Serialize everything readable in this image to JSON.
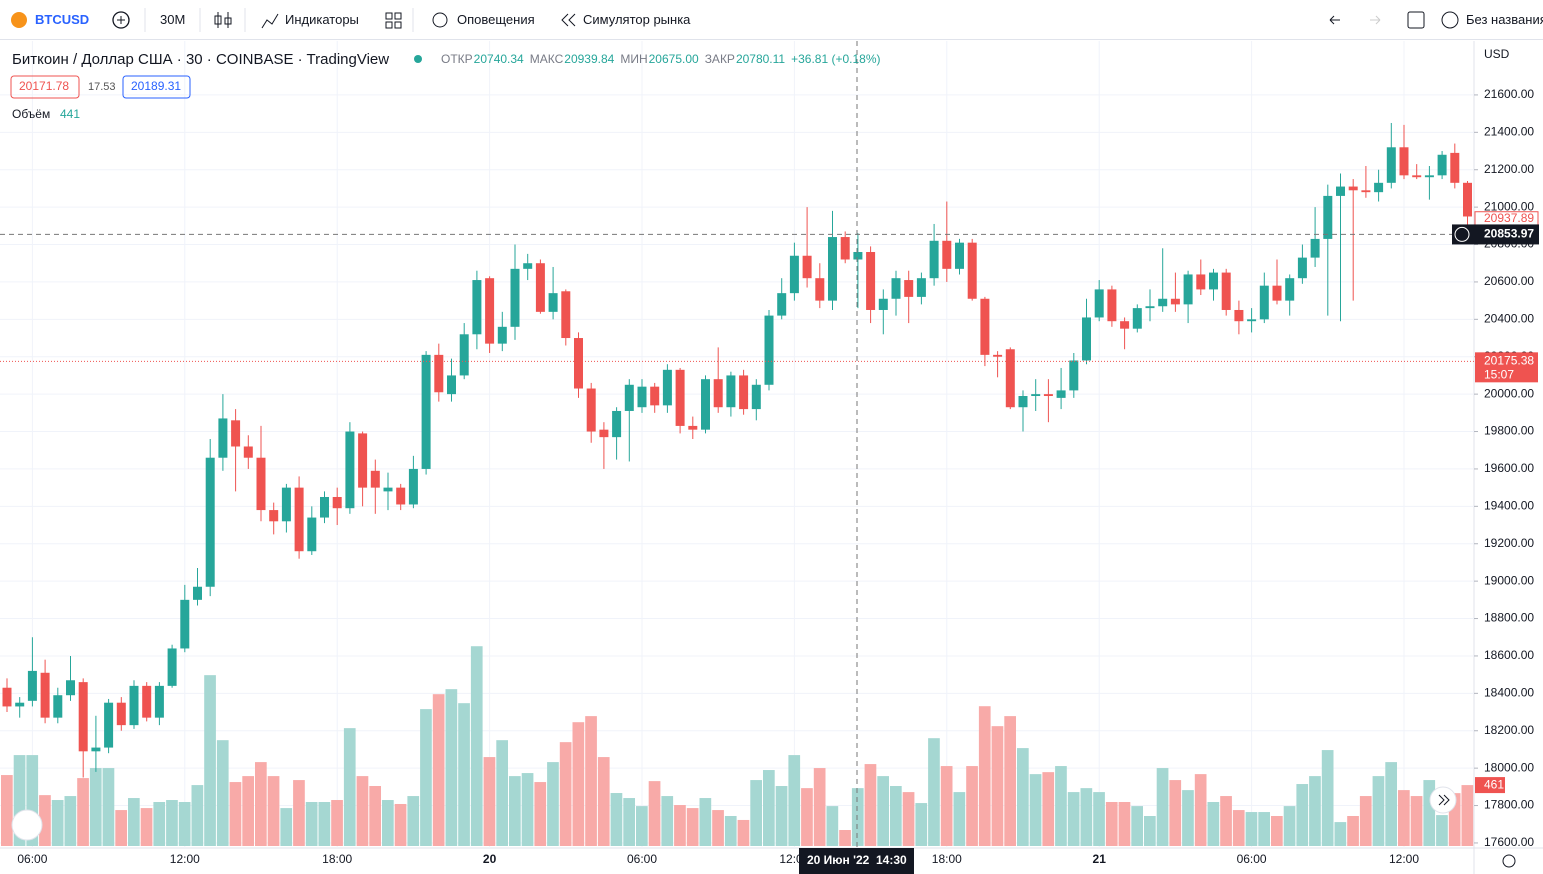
{
  "header": {
    "symbol": "BTCUSD",
    "interval": "30М",
    "indicators": "Индикаторы",
    "alerts": "Оповещения",
    "replay": "Симулятор рынка",
    "layout": "Без названия"
  },
  "chart_data": {
    "type": "candlestick",
    "title": "Биткоин / Доллар США · 30 · COINBASE · TradingView",
    "legend": {
      "open_label": "ОТКР",
      "open": 20740.34,
      "high_label": "МАКС",
      "high": 20939.84,
      "low_label": "МИН",
      "low": {
        "value": 20675,
        "label": "20675.00"
      },
      "close_label": "ЗАКР",
      "close": 20780.11,
      "change": "+36.81 (+0.18%)"
    },
    "bid": 20171.78,
    "spread": 17.53,
    "ask": 20189.31,
    "volume_label": "Объём",
    "volume_last": 441,
    "currency": "USD",
    "up_color": "#26a69a",
    "down_color": "#ef5350",
    "up_volume_color": "#a5d7d2",
    "down_volume_color": "#f8aaa8",
    "ylim": [
      17573,
      21883
    ],
    "yticks": [
      {
        "value": 17600,
        "label": "17600.00"
      },
      {
        "value": 17800,
        "label": "17800.00"
      },
      {
        "value": 18000,
        "label": "18000.00"
      },
      {
        "value": 18200,
        "label": "18200.00"
      },
      {
        "value": 18400,
        "label": "18400.00"
      },
      {
        "value": 18600,
        "label": "18600.00"
      },
      {
        "value": 18800,
        "label": "18800.00"
      },
      {
        "value": 19000,
        "label": "19000.00"
      },
      {
        "value": 19200,
        "label": "19200.00"
      },
      {
        "value": 19400,
        "label": "19400.00"
      },
      {
        "value": 19600,
        "label": "19600.00"
      },
      {
        "value": 19800,
        "label": "19800.00"
      },
      {
        "value": 20000,
        "label": "20000.00"
      },
      {
        "value": 20200,
        "label": "20200.00"
      },
      {
        "value": 20400,
        "label": "20400.00"
      },
      {
        "value": 20600,
        "label": "20600.00"
      },
      {
        "value": 20800,
        "label": "20800.00"
      },
      {
        "value": 21000,
        "label": "21000.00"
      },
      {
        "value": 21200,
        "label": "21200.00"
      },
      {
        "value": 21400,
        "label": "21400.00"
      },
      {
        "value": 21600,
        "label": "21600.00"
      }
    ],
    "xticks": [
      {
        "value": 2,
        "label": "06:00"
      },
      {
        "value": 14,
        "label": "12:00"
      },
      {
        "value": 26,
        "label": "18:00"
      },
      {
        "value": 38,
        "label": "20"
      },
      {
        "value": 50,
        "label": "06:00"
      },
      {
        "value": 62,
        "label": "12:00"
      },
      {
        "value": 74,
        "label": "18:00"
      },
      {
        "value": 86,
        "label": "21"
      },
      {
        "value": 98,
        "label": "06:00"
      },
      {
        "value": 110,
        "label": "12:00"
      }
    ],
    "grid": true,
    "crosshair_price": 20853.97,
    "crosshair_time": [
      "20 Июн '22",
      "14:30"
    ],
    "open_price_tag": 20937.89,
    "last_price": 20175.38,
    "countdown": "15:07",
    "volume_ylim": [
      0,
      6100
    ],
    "volume_tag": 461,
    "candles": [
      [
        18430,
        18480,
        18300,
        18330
      ],
      [
        18330,
        18380,
        18270,
        18350
      ],
      [
        18360,
        18700,
        18330,
        18520
      ],
      [
        18510,
        18580,
        18240,
        18270
      ],
      [
        18270,
        18430,
        18240,
        18390
      ],
      [
        18390,
        18600,
        18360,
        18470
      ],
      [
        18460,
        18480,
        17950,
        18090
      ],
      [
        18090,
        18280,
        17980,
        18110
      ],
      [
        18110,
        18370,
        18080,
        18350
      ],
      [
        18350,
        18380,
        18200,
        18230
      ],
      [
        18230,
        18470,
        18210,
        18440
      ],
      [
        18440,
        18460,
        18250,
        18270
      ],
      [
        18270,
        18460,
        18230,
        18440
      ],
      [
        18440,
        18660,
        18430,
        18640
      ],
      [
        18640,
        18980,
        18620,
        18900
      ],
      [
        18900,
        19070,
        18870,
        18970
      ],
      [
        18970,
        19760,
        18920,
        19660
      ],
      [
        19660,
        20000,
        19590,
        19870
      ],
      [
        19860,
        19920,
        19480,
        19720
      ],
      [
        19720,
        19780,
        19600,
        19660
      ],
      [
        19660,
        19830,
        19320,
        19380
      ],
      [
        19380,
        19420,
        19250,
        19320
      ],
      [
        19320,
        19520,
        19260,
        19500
      ],
      [
        19500,
        19560,
        19120,
        19160
      ],
      [
        19160,
        19400,
        19140,
        19340
      ],
      [
        19340,
        19480,
        19310,
        19450
      ],
      [
        19450,
        19500,
        19300,
        19390
      ],
      [
        19390,
        19850,
        19360,
        19800
      ],
      [
        19790,
        19800,
        19400,
        19500
      ],
      [
        19590,
        19650,
        19360,
        19500
      ],
      [
        19480,
        19580,
        19380,
        19500
      ],
      [
        19500,
        19520,
        19380,
        19410
      ],
      [
        19410,
        19670,
        19390,
        19600
      ],
      [
        19600,
        20230,
        19570,
        20210
      ],
      [
        20210,
        20270,
        19960,
        20010
      ],
      [
        20000,
        20190,
        19960,
        20100
      ],
      [
        20100,
        20380,
        20080,
        20320
      ],
      [
        20320,
        20660,
        20240,
        20610
      ],
      [
        20620,
        20630,
        20220,
        20270
      ],
      [
        20270,
        20440,
        20230,
        20360
      ],
      [
        20360,
        20800,
        20290,
        20670
      ],
      [
        20670,
        20750,
        20610,
        20700
      ],
      [
        20700,
        20720,
        20430,
        20440
      ],
      [
        20440,
        20680,
        20400,
        20540
      ],
      [
        20550,
        20560,
        20260,
        20300
      ],
      [
        20300,
        20330,
        19980,
        20030
      ],
      [
        20030,
        20060,
        19740,
        19800
      ],
      [
        19810,
        19850,
        19600,
        19770
      ],
      [
        19770,
        19930,
        19650,
        19910
      ],
      [
        19910,
        20080,
        19640,
        20050
      ],
      [
        19930,
        20080,
        19900,
        20040
      ],
      [
        20040,
        20060,
        19900,
        19940
      ],
      [
        19940,
        20160,
        19900,
        20130
      ],
      [
        20130,
        20140,
        19790,
        19830
      ],
      [
        19830,
        19880,
        19760,
        19810
      ],
      [
        19810,
        20100,
        19790,
        20080
      ],
      [
        20080,
        20250,
        19900,
        19930
      ],
      [
        19930,
        20120,
        19880,
        20100
      ],
      [
        20100,
        20130,
        19890,
        19920
      ],
      [
        19920,
        20080,
        19860,
        20050
      ],
      [
        20050,
        20450,
        20020,
        20420
      ],
      [
        20420,
        20620,
        20400,
        20540
      ],
      [
        20540,
        20810,
        20500,
        20740
      ],
      [
        20740,
        21000,
        20570,
        20620
      ],
      [
        20620,
        20700,
        20460,
        20500
      ],
      [
        20500,
        20980,
        20450,
        20840
      ],
      [
        20840,
        20870,
        20700,
        20720
      ],
      [
        20720,
        20860,
        20460,
        20760
      ],
      [
        20760,
        20790,
        20380,
        20450
      ],
      [
        20450,
        20560,
        20320,
        20510
      ],
      [
        20510,
        20660,
        20420,
        20620
      ],
      [
        20610,
        20660,
        20380,
        20520
      ],
      [
        20520,
        20650,
        20480,
        20620
      ],
      [
        20620,
        20910,
        20580,
        20820
      ],
      [
        20820,
        21030,
        20600,
        20670
      ],
      [
        20670,
        20830,
        20640,
        20810
      ],
      [
        20810,
        20830,
        20500,
        20510
      ],
      [
        20510,
        20520,
        20150,
        20210
      ],
      [
        20210,
        20230,
        20090,
        20200
      ],
      [
        20240,
        20250,
        19920,
        19930
      ],
      [
        19930,
        20020,
        19800,
        19990
      ],
      [
        19990,
        20080,
        19910,
        20000
      ],
      [
        20000,
        20080,
        19850,
        19990
      ],
      [
        19980,
        20140,
        19920,
        20020
      ],
      [
        20020,
        20220,
        19980,
        20180
      ],
      [
        20180,
        20510,
        20160,
        20410
      ],
      [
        20410,
        20610,
        20390,
        20560
      ],
      [
        20560,
        20580,
        20360,
        20390
      ],
      [
        20390,
        20410,
        20240,
        20350
      ],
      [
        20350,
        20480,
        20330,
        20460
      ],
      [
        20460,
        20560,
        20390,
        20470
      ],
      [
        20470,
        20780,
        20440,
        20510
      ],
      [
        20510,
        20650,
        20440,
        20480
      ],
      [
        20480,
        20660,
        20380,
        20640
      ],
      [
        20640,
        20720,
        20530,
        20560
      ],
      [
        20560,
        20670,
        20500,
        20650
      ],
      [
        20650,
        20670,
        20420,
        20450
      ],
      [
        20450,
        20500,
        20320,
        20390
      ],
      [
        20390,
        20460,
        20330,
        20400
      ],
      [
        20400,
        20650,
        20380,
        20580
      ],
      [
        20580,
        20720,
        20480,
        20500
      ],
      [
        20500,
        20640,
        20420,
        20620
      ],
      [
        20620,
        20800,
        20590,
        20730
      ],
      [
        20730,
        21000,
        20680,
        20830
      ],
      [
        20830,
        21120,
        20420,
        21060
      ],
      [
        21060,
        21180,
        20390,
        21110
      ],
      [
        21110,
        21150,
        20500,
        21090
      ],
      [
        21090,
        21220,
        21050,
        21080
      ],
      [
        21080,
        21200,
        21030,
        21130
      ],
      [
        21130,
        21450,
        21100,
        21320
      ],
      [
        21320,
        21440,
        21150,
        21170
      ],
      [
        21170,
        21230,
        21150,
        21160
      ],
      [
        21160,
        21220,
        21040,
        21170
      ],
      [
        21170,
        21300,
        21150,
        21280
      ],
      [
        21290,
        21340,
        21100,
        21130
      ],
      [
        21130,
        21140,
        20900,
        20950
      ]
    ],
    "volume": [
      537,
      688,
      688,
      385,
      348,
      378,
      514,
      590,
      590,
      272,
      363,
      287,
      333,
      348,
      333,
      461,
      1293,
      801,
      484,
      529,
      635,
      529,
      287,
      499,
      333,
      333,
      348,
      892,
      529,
      454,
      348,
      318,
      378,
      1036,
      1149,
      1187,
      1081,
      1512,
      673,
      801,
      529,
      552,
      484,
      635,
      786,
      937,
      983,
      673,
      401,
      363,
      302,
      491,
      378,
      310,
      287,
      363,
      272,
      227,
      197,
      499,
      575,
      454,
      688,
      438,
      590,
      302,
      121,
      438,
      620,
      529,
      454,
      408,
      325,
      816,
      605,
      408,
      605,
      1058,
      907,
      983,
      741,
      544,
      559,
      605,
      408,
      438,
      408,
      333,
      333,
      302,
      227,
      590,
      499,
      423,
      544,
      333,
      378,
      272,
      257,
      257,
      227,
      302,
      469,
      529,
      726,
      181,
      227,
      378,
      529,
      635,
      423,
      378,
      499,
      234,
      400,
      461
    ]
  }
}
